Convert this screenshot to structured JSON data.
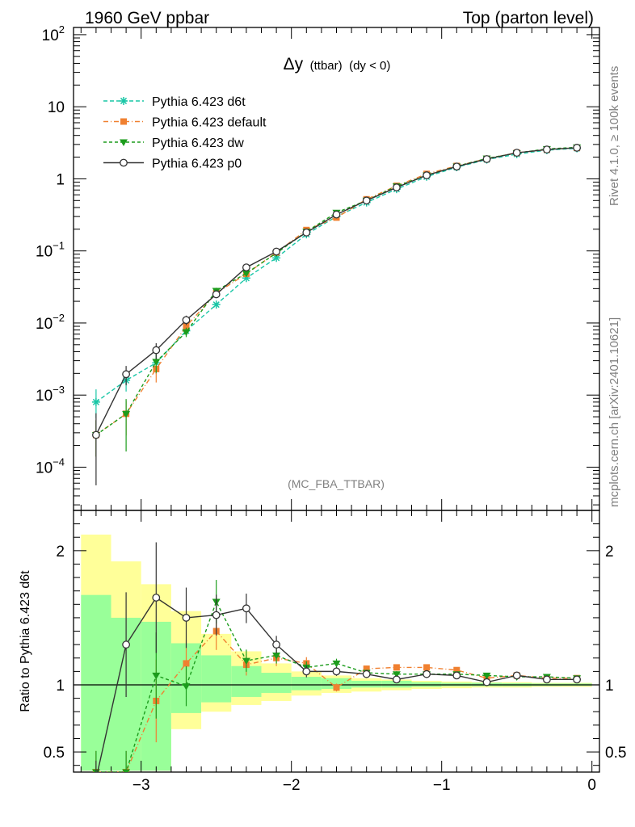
{
  "header": {
    "left": "1960 GeV ppbar",
    "right": "Top (parton level)"
  },
  "side_labels": {
    "rivet": "Rivet 4.1.0, ≥ 100k events",
    "mcplots": "mcplots.cern.ch [arXiv:2401.10621]"
  },
  "chart_data": {
    "type": "line",
    "title_main": "Δy",
    "title_small": "(ttbar)",
    "title_cond": "(dy < 0)",
    "analysis": "(MC_FBA_TTBAR)",
    "xlim": [
      -3.45,
      0.05
    ],
    "main_ylim_log10": [
      -4.6,
      2.1
    ],
    "ratio_ylim": [
      0.35,
      2.3
    ],
    "ratio_ylabel": "Ratio to Pythia 6.423 d6t",
    "x_ticks": [
      -3,
      -2,
      -1,
      0
    ],
    "x_tick_labels": [
      "−3",
      "−2",
      "−1",
      "0"
    ],
    "main_y_ticks": [
      {
        "exp": 2,
        "mantissa": "10",
        "sup": "2"
      },
      {
        "exp": 1,
        "mantissa": "10",
        "sup": ""
      },
      {
        "exp": 0,
        "mantissa": "1",
        "sup": ""
      },
      {
        "exp": -1,
        "mantissa": "10",
        "sup": "−1"
      },
      {
        "exp": -2,
        "mantissa": "10",
        "sup": "−2"
      },
      {
        "exp": -3,
        "mantissa": "10",
        "sup": "−3"
      },
      {
        "exp": -4,
        "mantissa": "10",
        "sup": "−4"
      }
    ],
    "ratio_y_ticks": [
      {
        "value": 2,
        "label": "2"
      },
      {
        "value": 1,
        "label": "1"
      },
      {
        "value": 0.5,
        "label": "0.5"
      }
    ],
    "x": [
      -3.3,
      -3.1,
      -2.9,
      -2.7,
      -2.5,
      -2.3,
      -2.1,
      -1.9,
      -1.7,
      -1.5,
      -1.3,
      -1.1,
      -0.9,
      -0.7,
      -0.5,
      -0.3,
      -0.1
    ],
    "band_edges": [
      -3.4,
      -3.2,
      -3.0,
      -2.8,
      -2.6,
      -2.4,
      -2.2,
      -2.0,
      -1.8,
      -1.6,
      -1.4,
      -1.2,
      -1.0,
      -0.8,
      -0.6,
      -0.4,
      -0.2,
      0.0
    ],
    "band_inner": [
      [
        0.36,
        1.67
      ],
      [
        0.36,
        1.5
      ],
      [
        0.36,
        1.47
      ],
      [
        0.79,
        1.31
      ],
      [
        0.87,
        1.22
      ],
      [
        0.91,
        1.14
      ],
      [
        0.94,
        1.09
      ],
      [
        0.96,
        1.06
      ],
      [
        0.97,
        1.05
      ],
      [
        0.98,
        1.03
      ],
      [
        0.98,
        1.03
      ],
      [
        0.985,
        1.02
      ],
      [
        0.99,
        1.015
      ],
      [
        0.99,
        1.015
      ],
      [
        0.99,
        1.012
      ],
      [
        0.992,
        1.01
      ],
      [
        0.993,
        1.01
      ]
    ],
    "band_outer": [
      [
        0.36,
        2.12
      ],
      [
        0.36,
        1.92
      ],
      [
        0.36,
        1.75
      ],
      [
        0.67,
        1.55
      ],
      [
        0.8,
        1.38
      ],
      [
        0.85,
        1.25
      ],
      [
        0.88,
        1.16
      ],
      [
        0.92,
        1.1
      ],
      [
        0.94,
        1.07
      ],
      [
        0.95,
        1.05
      ],
      [
        0.96,
        1.04
      ],
      [
        0.97,
        1.03
      ],
      [
        0.975,
        1.025
      ],
      [
        0.98,
        1.02
      ],
      [
        0.98,
        1.02
      ],
      [
        0.985,
        1.015
      ],
      [
        0.985,
        1.015
      ]
    ],
    "series": [
      {
        "name": "Pythia 6.423 d6t",
        "color": "#19c6a6",
        "marker": "star",
        "dash": "5,3",
        "values": [
          0.0008,
          0.0016,
          0.0028,
          0.0078,
          0.018,
          0.042,
          0.08,
          0.17,
          0.3,
          0.47,
          0.72,
          1.07,
          1.45,
          1.85,
          2.2,
          2.5,
          2.65
        ],
        "err_low": [
          0.4,
          0.3,
          0.3,
          0.15,
          0.1,
          0.07,
          0.05,
          0.04,
          0.03,
          0.02,
          0.02,
          0.015,
          0.01,
          0.01,
          0.01,
          0.01,
          0.01
        ],
        "err_high": [
          0.5,
          0.3,
          0.3,
          0.15,
          0.1,
          0.07,
          0.05,
          0.04,
          0.03,
          0.02,
          0.02,
          0.015,
          0.01,
          0.01,
          0.01,
          0.01,
          0.01
        ],
        "ratio": [
          1.0,
          1.0,
          1.0,
          1.0,
          1.0,
          1.0,
          1.0,
          1.0,
          1.0,
          1.0,
          1.0,
          1.0,
          1.0,
          1.0,
          1.0,
          1.0,
          1.0
        ]
      },
      {
        "name": "Pythia 6.423 default",
        "color": "#f08030",
        "marker": "square",
        "dash": "6,3,1,3",
        "values": [
          0.00028,
          0.00055,
          0.0023,
          0.009,
          0.026,
          0.048,
          0.095,
          0.195,
          0.29,
          0.52,
          0.8,
          1.17,
          1.51,
          1.9,
          2.3,
          2.55,
          2.7
        ],
        "err_low": [
          0.5,
          0.5,
          0.35,
          0.15,
          0.1,
          0.07,
          0.05,
          0.04,
          0.03,
          0.02,
          0.02,
          0.015,
          0.01,
          0.01,
          0.01,
          0.01,
          0.01
        ],
        "err_high": [
          0.6,
          0.5,
          0.3,
          0.15,
          0.1,
          0.07,
          0.05,
          0.04,
          0.03,
          0.02,
          0.02,
          0.015,
          0.01,
          0.01,
          0.01,
          0.01,
          0.01
        ],
        "ratio": [
          0.35,
          0.35,
          0.88,
          1.16,
          1.4,
          1.15,
          1.2,
          1.16,
          0.98,
          1.12,
          1.13,
          1.13,
          1.11,
          1.05,
          1.07,
          1.05,
          1.05
        ]
      },
      {
        "name": "Pythia 6.423 dw",
        "color": "#1c9c1c",
        "marker": "triangle",
        "dash": "4,3",
        "values": [
          0.00028,
          0.00055,
          0.0029,
          0.0075,
          0.028,
          0.049,
          0.093,
          0.185,
          0.34,
          0.5,
          0.79,
          1.12,
          1.49,
          1.92,
          2.28,
          2.6,
          2.74
        ],
        "err_low": [
          0.5,
          0.7,
          0.3,
          0.15,
          0.1,
          0.07,
          0.05,
          0.04,
          0.03,
          0.02,
          0.02,
          0.015,
          0.01,
          0.01,
          0.01,
          0.01,
          0.01
        ],
        "err_high": [
          0.6,
          0.6,
          0.3,
          0.15,
          0.1,
          0.07,
          0.05,
          0.04,
          0.03,
          0.02,
          0.02,
          0.015,
          0.01,
          0.01,
          0.01,
          0.01,
          0.01
        ],
        "ratio": [
          0.35,
          0.35,
          1.07,
          0.99,
          1.62,
          1.18,
          1.22,
          1.13,
          1.16,
          1.09,
          1.08,
          1.08,
          1.08,
          1.07,
          1.06,
          1.06,
          1.05
        ]
      },
      {
        "name": "Pythia 6.423 p0",
        "color": "#333333",
        "marker": "circle",
        "dash": "",
        "values": [
          0.00028,
          0.00195,
          0.0042,
          0.011,
          0.025,
          0.059,
          0.098,
          0.18,
          0.32,
          0.5,
          0.76,
          1.12,
          1.48,
          1.88,
          2.3,
          2.55,
          2.7
        ],
        "err_low": [
          0.8,
          0.3,
          0.25,
          0.15,
          0.1,
          0.07,
          0.05,
          0.04,
          0.03,
          0.02,
          0.02,
          0.015,
          0.01,
          0.01,
          0.01,
          0.01,
          0.01
        ],
        "err_high": [
          1.0,
          0.3,
          0.25,
          0.15,
          0.1,
          0.07,
          0.05,
          0.04,
          0.03,
          0.02,
          0.02,
          0.015,
          0.01,
          0.01,
          0.01,
          0.01,
          0.01
        ],
        "ratio": [
          0.3,
          1.3,
          1.65,
          1.5,
          1.52,
          1.57,
          1.3,
          1.1,
          1.1,
          1.08,
          1.04,
          1.08,
          1.07,
          1.02,
          1.07,
          1.04,
          1.04
        ]
      }
    ]
  }
}
